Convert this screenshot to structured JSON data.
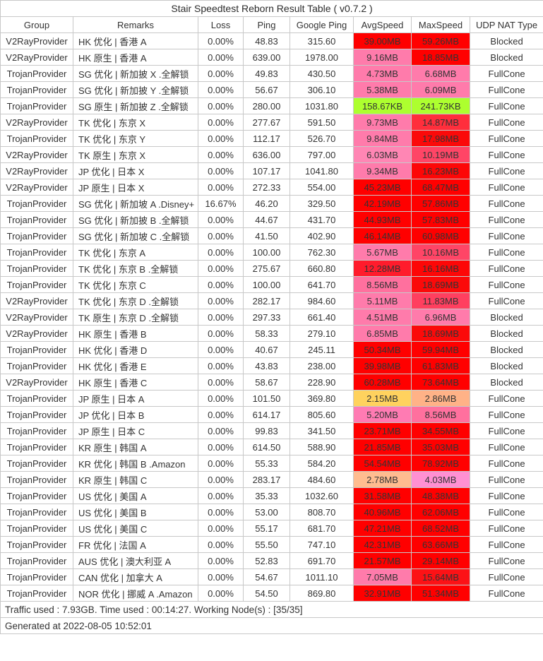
{
  "chart_data": {
    "type": "table",
    "title": "Stair Speedtest Reborn Result Table ( v0.7.2 )",
    "columns": [
      "Group",
      "Remarks",
      "Loss",
      "Ping",
      "Google Ping",
      "AvgSpeed",
      "MaxSpeed",
      "UDP NAT Type"
    ],
    "rows": [
      {
        "group": "V2RayProvider",
        "remarks": "HK 优化 | 香港 A",
        "loss": "0.00%",
        "ping": "48.83",
        "google_ping": "315.60",
        "avg": "39.00MB",
        "avg_color": "#FF0000",
        "max": "59.26MB",
        "max_color": "#FF0000",
        "nat": "Blocked"
      },
      {
        "group": "V2RayProvider",
        "remarks": "HK 原生 | 香港 A",
        "loss": "0.00%",
        "ping": "639.00",
        "google_ping": "1978.00",
        "avg": "9.16MB",
        "avg_color": "#FF7BAB",
        "max": "18.85MB",
        "max_color": "#FF0000",
        "nat": "Blocked"
      },
      {
        "group": "TrojanProvider",
        "remarks": "SG 优化 | 新加披 X .全解锁",
        "loss": "0.00%",
        "ping": "49.83",
        "google_ping": "430.50",
        "avg": "4.73MB",
        "avg_color": "#FF7BAB",
        "max": "6.68MB",
        "max_color": "#FF7BAB",
        "nat": "FullCone"
      },
      {
        "group": "TrojanProvider",
        "remarks": "SG 优化 | 新加披 Y .全解锁",
        "loss": "0.00%",
        "ping": "56.67",
        "google_ping": "306.10",
        "avg": "5.38MB",
        "avg_color": "#FF7BAB",
        "max": "6.09MB",
        "max_color": "#FF7BAB",
        "nat": "FullCone"
      },
      {
        "group": "TrojanProvider",
        "remarks": "SG 原生 | 新加披 Z .全解锁",
        "loss": "0.00%",
        "ping": "280.00",
        "google_ping": "1031.80",
        "avg": "158.67KB",
        "avg_color": "#ADFF2F",
        "max": "241.73KB",
        "max_color": "#ADFF2F",
        "nat": "FullCone"
      },
      {
        "group": "V2RayProvider",
        "remarks": "TK 优化 | 东京 X",
        "loss": "0.00%",
        "ping": "277.67",
        "google_ping": "591.50",
        "avg": "9.73MB",
        "avg_color": "#FF7BAB",
        "max": "14.87MB",
        "max_color": "#FF2E3C",
        "nat": "FullCone"
      },
      {
        "group": "TrojanProvider",
        "remarks": "TK 优化 | 东京 Y",
        "loss": "0.00%",
        "ping": "112.17",
        "google_ping": "526.70",
        "avg": "9.84MB",
        "avg_color": "#FF7BAB",
        "max": "17.98MB",
        "max_color": "#FB0A0A",
        "nat": "FullCone"
      },
      {
        "group": "V2RayProvider",
        "remarks": "TK 原生 | 东京 X",
        "loss": "0.00%",
        "ping": "636.00",
        "google_ping": "797.00",
        "avg": "6.03MB",
        "avg_color": "#FF86B4",
        "max": "10.19MB",
        "max_color": "#FF4566",
        "nat": "FullCone"
      },
      {
        "group": "V2RayProvider",
        "remarks": "JP 优化 | 日本 X",
        "loss": "0.00%",
        "ping": "107.17",
        "google_ping": "1041.80",
        "avg": "9.34MB",
        "avg_color": "#FF7BAB",
        "max": "16.23MB",
        "max_color": "#FD0707",
        "nat": "FullCone"
      },
      {
        "group": "V2RayProvider",
        "remarks": "JP 原生 | 日本 X",
        "loss": "0.00%",
        "ping": "272.33",
        "google_ping": "554.00",
        "avg": "45.23MB",
        "avg_color": "#FF0000",
        "max": "68.47MB",
        "max_color": "#FF0000",
        "nat": "FullCone"
      },
      {
        "group": "TrojanProvider",
        "remarks": "SG 优化 | 新加坡 A .Disney+",
        "loss": "16.67%",
        "ping": "46.20",
        "google_ping": "329.50",
        "avg": "42.19MB",
        "avg_color": "#FF0000",
        "max": "57.86MB",
        "max_color": "#FF0000",
        "nat": "FullCone"
      },
      {
        "group": "TrojanProvider",
        "remarks": "SG 优化 | 新加披 B .全解锁",
        "loss": "0.00%",
        "ping": "44.67",
        "google_ping": "431.70",
        "avg": "44.93MB",
        "avg_color": "#FF0000",
        "max": "57.83MB",
        "max_color": "#FF0000",
        "nat": "FullCone"
      },
      {
        "group": "TrojanProvider",
        "remarks": "SG 优化 | 新加坡 C .全解锁",
        "loss": "0.00%",
        "ping": "41.50",
        "google_ping": "402.90",
        "avg": "46.14MB",
        "avg_color": "#FF0000",
        "max": "60.98MB",
        "max_color": "#FF0000",
        "nat": "FullCone"
      },
      {
        "group": "TrojanProvider",
        "remarks": "TK 优化 | 东京 A",
        "loss": "0.00%",
        "ping": "100.00",
        "google_ping": "762.30",
        "avg": "5.67MB",
        "avg_color": "#FF7BAB",
        "max": "10.16MB",
        "max_color": "#FF4566",
        "nat": "FullCone"
      },
      {
        "group": "TrojanProvider",
        "remarks": "TK 优化 | 东京 B .全解锁",
        "loss": "0.00%",
        "ping": "275.67",
        "google_ping": "660.80",
        "avg": "12.28MB",
        "avg_color": "#FF1C2C",
        "max": "16.16MB",
        "max_color": "#FD0707",
        "nat": "FullCone"
      },
      {
        "group": "TrojanProvider",
        "remarks": "TK 优化 | 东京 C",
        "loss": "0.00%",
        "ping": "100.00",
        "google_ping": "641.70",
        "avg": "8.56MB",
        "avg_color": "#FF709E",
        "max": "18.69MB",
        "max_color": "#FB0A0A",
        "nat": "FullCone"
      },
      {
        "group": "V2RayProvider",
        "remarks": "TK 优化 | 东京 D .全解锁",
        "loss": "0.00%",
        "ping": "282.17",
        "google_ping": "984.60",
        "avg": "5.11MB",
        "avg_color": "#FF7BAB",
        "max": "11.83MB",
        "max_color": "#FF3F5F",
        "nat": "FullCone"
      },
      {
        "group": "V2RayProvider",
        "remarks": "TK 原生 | 东京 D .全解锁",
        "loss": "0.00%",
        "ping": "297.33",
        "google_ping": "661.40",
        "avg": "4.51MB",
        "avg_color": "#FF7BAB",
        "max": "6.96MB",
        "max_color": "#FF7BAB",
        "nat": "Blocked"
      },
      {
        "group": "V2RayProvider",
        "remarks": "HK 原生 | 香港 B",
        "loss": "0.00%",
        "ping": "58.33",
        "google_ping": "279.10",
        "avg": "6.85MB",
        "avg_color": "#FF7BAB",
        "max": "18.69MB",
        "max_color": "#FB0A0A",
        "nat": "Blocked"
      },
      {
        "group": "TrojanProvider",
        "remarks": "HK 优化 | 香港 D",
        "loss": "0.00%",
        "ping": "40.67",
        "google_ping": "245.11",
        "avg": "50.34MB",
        "avg_color": "#FF0000",
        "max": "59.94MB",
        "max_color": "#FF0000",
        "nat": "Blocked"
      },
      {
        "group": "TrojanProvider",
        "remarks": "HK 优化 | 香港 E",
        "loss": "0.00%",
        "ping": "43.83",
        "google_ping": "238.00",
        "avg": "39.98MB",
        "avg_color": "#FF0000",
        "max": "61.83MB",
        "max_color": "#FF0000",
        "nat": "Blocked"
      },
      {
        "group": "V2RayProvider",
        "remarks": "HK 原生 | 香港 C",
        "loss": "0.00%",
        "ping": "58.67",
        "google_ping": "228.90",
        "avg": "60.28MB",
        "avg_color": "#FF0000",
        "max": "73.64MB",
        "max_color": "#FF0000",
        "nat": "Blocked"
      },
      {
        "group": "TrojanProvider",
        "remarks": "JP 原生 | 日本 A",
        "loss": "0.00%",
        "ping": "101.50",
        "google_ping": "369.80",
        "avg": "2.15MB",
        "avg_color": "#FFD25E",
        "max": "2.86MB",
        "max_color": "#FFB287",
        "nat": "FullCone"
      },
      {
        "group": "TrojanProvider",
        "remarks": "JP 优化 | 日本 B",
        "loss": "0.00%",
        "ping": "614.17",
        "google_ping": "805.60",
        "avg": "5.20MB",
        "avg_color": "#FF7BB3",
        "max": "8.56MB",
        "max_color": "#FF709E",
        "nat": "FullCone"
      },
      {
        "group": "TrojanProvider",
        "remarks": "JP 原生 | 日本 C",
        "loss": "0.00%",
        "ping": "99.83",
        "google_ping": "341.50",
        "avg": "23.71MB",
        "avg_color": "#FF0000",
        "max": "34.55MB",
        "max_color": "#FF0000",
        "nat": "FullCone"
      },
      {
        "group": "TrojanProvider",
        "remarks": "KR 原生 | 韩国 A",
        "loss": "0.00%",
        "ping": "614.50",
        "google_ping": "588.90",
        "avg": "21.85MB",
        "avg_color": "#FF0000",
        "max": "35.03MB",
        "max_color": "#FF0000",
        "nat": "FullCone"
      },
      {
        "group": "TrojanProvider",
        "remarks": "KR 优化 | 韩国 B .Amazon",
        "loss": "0.00%",
        "ping": "55.33",
        "google_ping": "584.20",
        "avg": "54.54MB",
        "avg_color": "#FF0000",
        "max": "78.92MB",
        "max_color": "#FF0000",
        "nat": "FullCone"
      },
      {
        "group": "TrojanProvider",
        "remarks": "KR 原生 | 韩国 C",
        "loss": "0.00%",
        "ping": "283.17",
        "google_ping": "484.60",
        "avg": "2.78MB",
        "avg_color": "#FFBC90",
        "max": "4.03MB",
        "max_color": "#FF90D2",
        "nat": "FullCone"
      },
      {
        "group": "TrojanProvider",
        "remarks": "US 优化 | 美国 A",
        "loss": "0.00%",
        "ping": "35.33",
        "google_ping": "1032.60",
        "avg": "31.58MB",
        "avg_color": "#FF0000",
        "max": "48.38MB",
        "max_color": "#FF0000",
        "nat": "FullCone"
      },
      {
        "group": "TrojanProvider",
        "remarks": "US 优化 | 美国 B",
        "loss": "0.00%",
        "ping": "53.00",
        "google_ping": "808.70",
        "avg": "40.96MB",
        "avg_color": "#FF0000",
        "max": "62.06MB",
        "max_color": "#FF0000",
        "nat": "FullCone"
      },
      {
        "group": "TrojanProvider",
        "remarks": "US 优化 | 美国 C",
        "loss": "0.00%",
        "ping": "55.17",
        "google_ping": "681.70",
        "avg": "47.21MB",
        "avg_color": "#FF0000",
        "max": "68.52MB",
        "max_color": "#FF0000",
        "nat": "FullCone"
      },
      {
        "group": "TrojanProvider",
        "remarks": "FR 优化 | 法国 A",
        "loss": "0.00%",
        "ping": "55.50",
        "google_ping": "747.10",
        "avg": "42.31MB",
        "avg_color": "#FF0000",
        "max": "63.66MB",
        "max_color": "#FF0000",
        "nat": "FullCone"
      },
      {
        "group": "TrojanProvider",
        "remarks": "AUS 优化 | 澳大利亚 A",
        "loss": "0.00%",
        "ping": "52.83",
        "google_ping": "691.70",
        "avg": "21.57MB",
        "avg_color": "#FF0000",
        "max": "29.14MB",
        "max_color": "#FF0000",
        "nat": "FullCone"
      },
      {
        "group": "TrojanProvider",
        "remarks": "CAN 优化 | 加拿大 A",
        "loss": "0.00%",
        "ping": "54.67",
        "google_ping": "1011.10",
        "avg": "7.05MB",
        "avg_color": "#FF7BAB",
        "max": "15.64MB",
        "max_color": "#FC1216",
        "nat": "FullCone"
      },
      {
        "group": "TrojanProvider",
        "remarks": "NOR 优化 | 挪威 A .Amazon",
        "loss": "0.00%",
        "ping": "54.50",
        "google_ping": "869.80",
        "avg": "32.91MB",
        "avg_color": "#FF0000",
        "max": "51.34MB",
        "max_color": "#FF0000",
        "nat": "FullCone"
      }
    ],
    "footer": {
      "summary": "Traffic used : 7.93GB. Time used : 00:14:27. Working Node(s) : [35/35]",
      "generated": "Generated at 2022-08-05 10:52:01"
    },
    "layout_hints": {
      "speed_color_scale": "green #ADFF2F (KB range) → gold #FFD25E (~2MB) → peach #FFB287 (~3MB) → pink #FF7BAB (4–10MB) → rose #FF4566 (10–12MB) → red #FF0000 (>16MB)",
      "border_color": "#C8C8C8",
      "text_color": "#333333"
    }
  }
}
